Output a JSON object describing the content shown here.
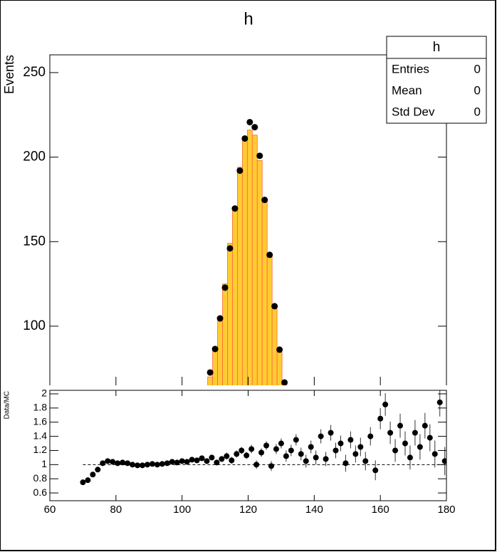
{
  "chart_data": [
    {
      "type": "histogram",
      "title": "h",
      "ylabel": "Events",
      "bins": [
        107.75,
        109.25,
        110.75,
        112.25,
        113.75,
        115.25,
        116.75,
        118.25,
        119.75,
        121.25,
        122.75,
        124.25,
        125.75,
        127.25,
        128.75,
        130.25,
        131.75
      ],
      "counts": [
        70,
        86,
        103,
        125,
        149,
        170,
        194,
        211,
        216,
        213,
        198,
        175,
        143,
        112,
        87,
        66
      ],
      "color": "#ffcc33",
      "edge_color": "#ff6633",
      "points": {
        "x": [
          108.5,
          110,
          111.5,
          113,
          114.5,
          116,
          117.5,
          119,
          120.5,
          122,
          123.5,
          125,
          126.5,
          128,
          129.5,
          131
        ],
        "values": [
          72.6,
          86.5,
          104.6,
          122.8,
          146,
          169.6,
          192,
          211,
          220.7,
          217.7,
          200.8,
          174.7,
          142.2,
          111.8,
          86.1,
          66.7
        ],
        "color": "#000000"
      },
      "xlim": [
        60,
        180
      ],
      "ylim": [
        65,
        260.5
      ],
      "yticks": [
        100,
        150,
        200,
        250
      ],
      "stats_box": {
        "title": "h",
        "rows": [
          [
            "Entries",
            0
          ],
          [
            "Mean",
            0
          ],
          [
            "Std Dev",
            0
          ]
        ]
      }
    },
    {
      "type": "scatter",
      "ylabel": "Data/MC",
      "x": [
        70,
        71.5,
        73,
        74.5,
        76,
        77.5,
        79,
        80.5,
        82,
        83.5,
        85,
        86.5,
        88,
        89.5,
        91,
        92.5,
        94,
        95.5,
        97,
        98.5,
        100,
        101.5,
        103,
        104.5,
        106,
        107.5,
        109,
        110.5,
        112,
        113.5,
        115,
        116.5,
        118,
        119.5,
        121,
        122.5,
        124,
        125.5,
        127,
        128.5,
        130,
        131.5,
        133,
        134.5,
        136,
        137.5,
        139,
        140.5,
        142,
        143.5,
        145,
        146.5,
        148,
        149.5,
        151,
        152.5,
        154,
        155.5,
        157,
        158.5,
        160,
        161.5,
        163,
        164.5,
        166,
        167.5,
        169,
        170.5,
        172,
        173.5,
        175,
        176.5,
        178,
        179.5
      ],
      "values": [
        0.75,
        0.78,
        0.86,
        0.93,
        1.02,
        1.05,
        1.04,
        1.02,
        1.03,
        1.02,
        1.0,
        0.99,
        0.99,
        1.0,
        1.01,
        1.0,
        1.01,
        1.02,
        1.04,
        1.03,
        1.05,
        1.04,
        1.07,
        1.06,
        1.09,
        1.05,
        1.1,
        1.03,
        1.08,
        1.12,
        1.06,
        1.15,
        1.2,
        1.13,
        1.22,
        1.0,
        1.17,
        1.27,
        0.98,
        1.22,
        1.3,
        1.12,
        1.2,
        1.35,
        1.15,
        1.05,
        1.25,
        1.1,
        1.4,
        1.08,
        1.45,
        1.2,
        1.3,
        1.02,
        1.35,
        1.15,
        1.25,
        1.05,
        1.4,
        0.92,
        1.65,
        1.85,
        1.45,
        1.2,
        1.55,
        1.3,
        1.1,
        1.45,
        1.25,
        1.55,
        1.38,
        1.15,
        1.88,
        1.05
      ],
      "errors": [
        0.03,
        0.03,
        0.03,
        0.03,
        0.03,
        0.03,
        0.03,
        0.02,
        0.02,
        0.02,
        0.02,
        0.02,
        0.02,
        0.02,
        0.02,
        0.02,
        0.02,
        0.02,
        0.02,
        0.02,
        0.03,
        0.03,
        0.03,
        0.03,
        0.03,
        0.04,
        0.04,
        0.04,
        0.04,
        0.05,
        0.05,
        0.05,
        0.05,
        0.05,
        0.06,
        0.06,
        0.06,
        0.06,
        0.07,
        0.07,
        0.07,
        0.08,
        0.08,
        0.08,
        0.09,
        0.09,
        0.09,
        0.1,
        0.1,
        0.1,
        0.11,
        0.11,
        0.11,
        0.12,
        0.12,
        0.12,
        0.13,
        0.13,
        0.13,
        0.14,
        0.15,
        0.16,
        0.16,
        0.16,
        0.17,
        0.17,
        0.17,
        0.18,
        0.18,
        0.18,
        0.19,
        0.19,
        0.2,
        0.2
      ],
      "color": "#000000",
      "reference_line": 1,
      "xlim": [
        60,
        180
      ],
      "xticks": [
        60,
        80,
        100,
        120,
        140,
        160,
        180
      ],
      "ylim": [
        0.49,
        2.05
      ],
      "yticks": [
        0.6,
        0.8,
        1,
        1.2,
        1.4,
        1.6,
        1.8,
        2
      ]
    }
  ]
}
